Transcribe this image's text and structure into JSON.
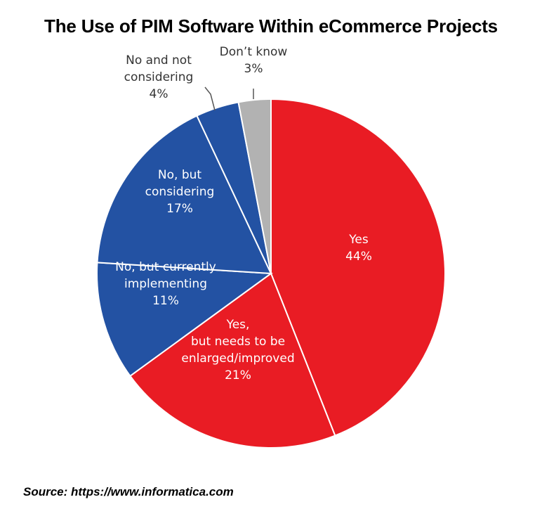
{
  "title": "The Use of PIM Software Within eCommerce Projects",
  "source": "Source: https://www.informatica.com",
  "chart_data": {
    "type": "pie",
    "title": "The Use of PIM Software Within eCommerce Projects",
    "slices": [
      {
        "label_lines": [
          "Yes"
        ],
        "value": 44,
        "value_label": "44%",
        "color": "#E91C24",
        "label_inside": true
      },
      {
        "label_lines": [
          "Yes,",
          "but needs to be",
          "enlarged/improved"
        ],
        "value": 21,
        "value_label": "21%",
        "color": "#E91C24",
        "label_inside": true
      },
      {
        "label_lines": [
          "No, but currently",
          "implementing"
        ],
        "value": 11,
        "value_label": "11%",
        "color": "#2352A3",
        "label_inside": true
      },
      {
        "label_lines": [
          "No, but",
          "considering"
        ],
        "value": 17,
        "value_label": "17%",
        "color": "#2352A3",
        "label_inside": true
      },
      {
        "label_lines": [
          "No and not",
          "considering"
        ],
        "value": 4,
        "value_label": "4%",
        "color": "#2352A3",
        "label_inside": false
      },
      {
        "label_lines": [
          "Don’t know"
        ],
        "value": 3,
        "value_label": "3%",
        "color": "#B2B2B2",
        "label_inside": false
      }
    ]
  }
}
